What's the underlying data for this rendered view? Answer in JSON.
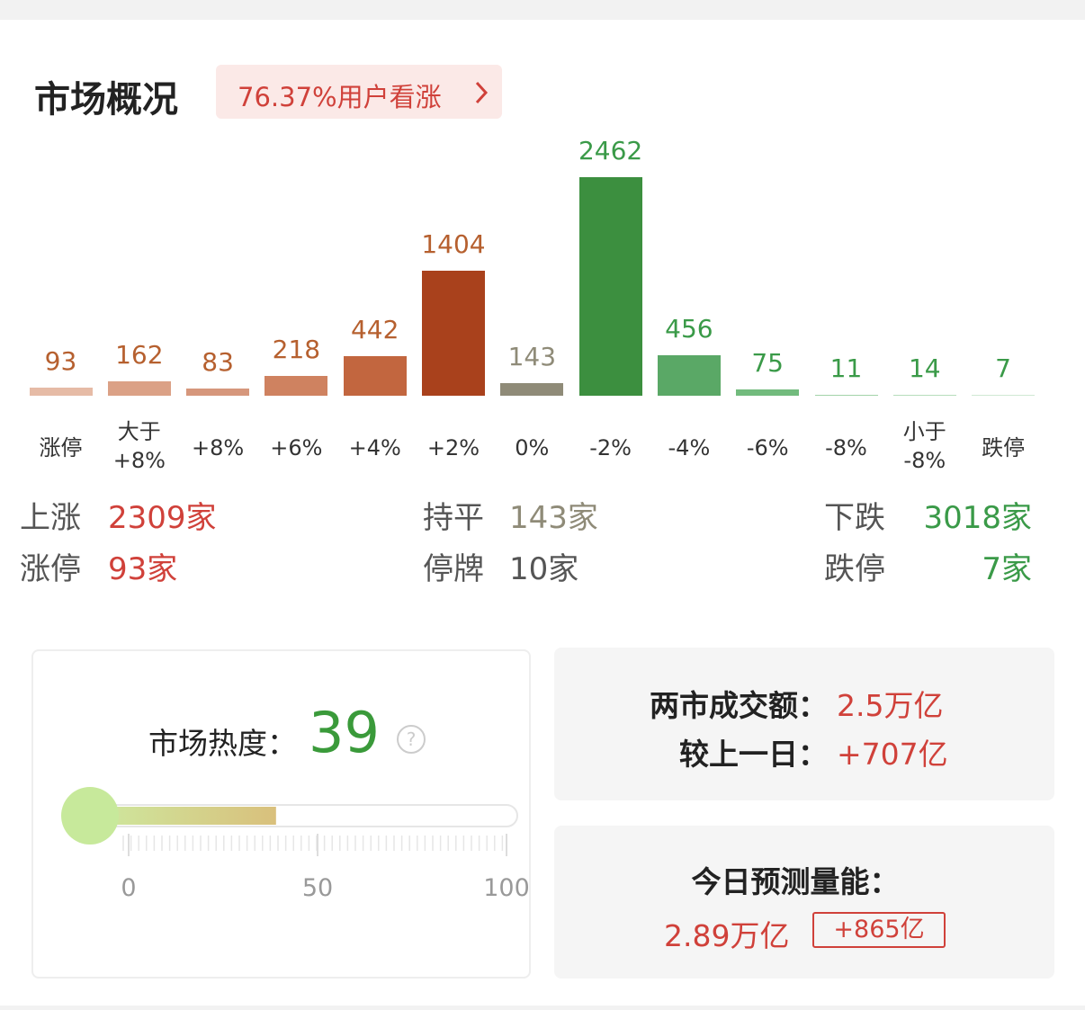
{
  "header": {
    "title": "市场概况",
    "badge": "76.37%用户看涨"
  },
  "chart_data": {
    "type": "bar",
    "categories": [
      "涨停",
      "大于\n+8%",
      "+8%",
      "+6%",
      "+4%",
      "+2%",
      "0%",
      "-2%",
      "-4%",
      "-6%",
      "-8%",
      "小于\n-8%",
      "跌停"
    ],
    "values": [
      93,
      162,
      83,
      218,
      442,
      1404,
      143,
      2462,
      456,
      75,
      11,
      14,
      7
    ],
    "colors": [
      "#e6bba6",
      "#dba186",
      "#d6977c",
      "#cf8260",
      "#c2663f",
      "#a9411c",
      "#8f8b78",
      "#3c8f3f",
      "#5aa866",
      "#72bb7d",
      "#a2d3a9",
      "#b6ddbb",
      "#cfe9d3"
    ],
    "label_colors": [
      "#b6602f",
      "#b6602f",
      "#b6602f",
      "#b6602f",
      "#b6602f",
      "#b6602f",
      "#8f8b78",
      "#3a9a48",
      "#3a9a48",
      "#3a9a48",
      "#3a9a48",
      "#3a9a48",
      "#3a9a48"
    ]
  },
  "stats": [
    {
      "label": "上涨",
      "value": "2309家",
      "color": "#d0413a"
    },
    {
      "label": "涨停",
      "value": "93家",
      "color": "#d0413a"
    },
    {
      "label": "持平",
      "value": "143家",
      "color": "#8f8b78"
    },
    {
      "label": "停牌",
      "value": "10家",
      "color": "#555555"
    },
    {
      "label": "下跌",
      "value": "3018家",
      "color": "#3a9a48"
    },
    {
      "label": "跌停",
      "value": "7家",
      "color": "#3a9a48"
    }
  ],
  "heat": {
    "label": "市场热度：",
    "value": 39,
    "range": [
      0,
      100
    ],
    "ticks": [
      0,
      50,
      100
    ]
  },
  "turnover": {
    "label": "两市成交额：",
    "value": "2.5万亿",
    "change_label": "较上一日：",
    "change": "+707亿"
  },
  "forecast": {
    "label": "今日预测量能：",
    "value": "2.89万亿",
    "change": "+865亿"
  }
}
